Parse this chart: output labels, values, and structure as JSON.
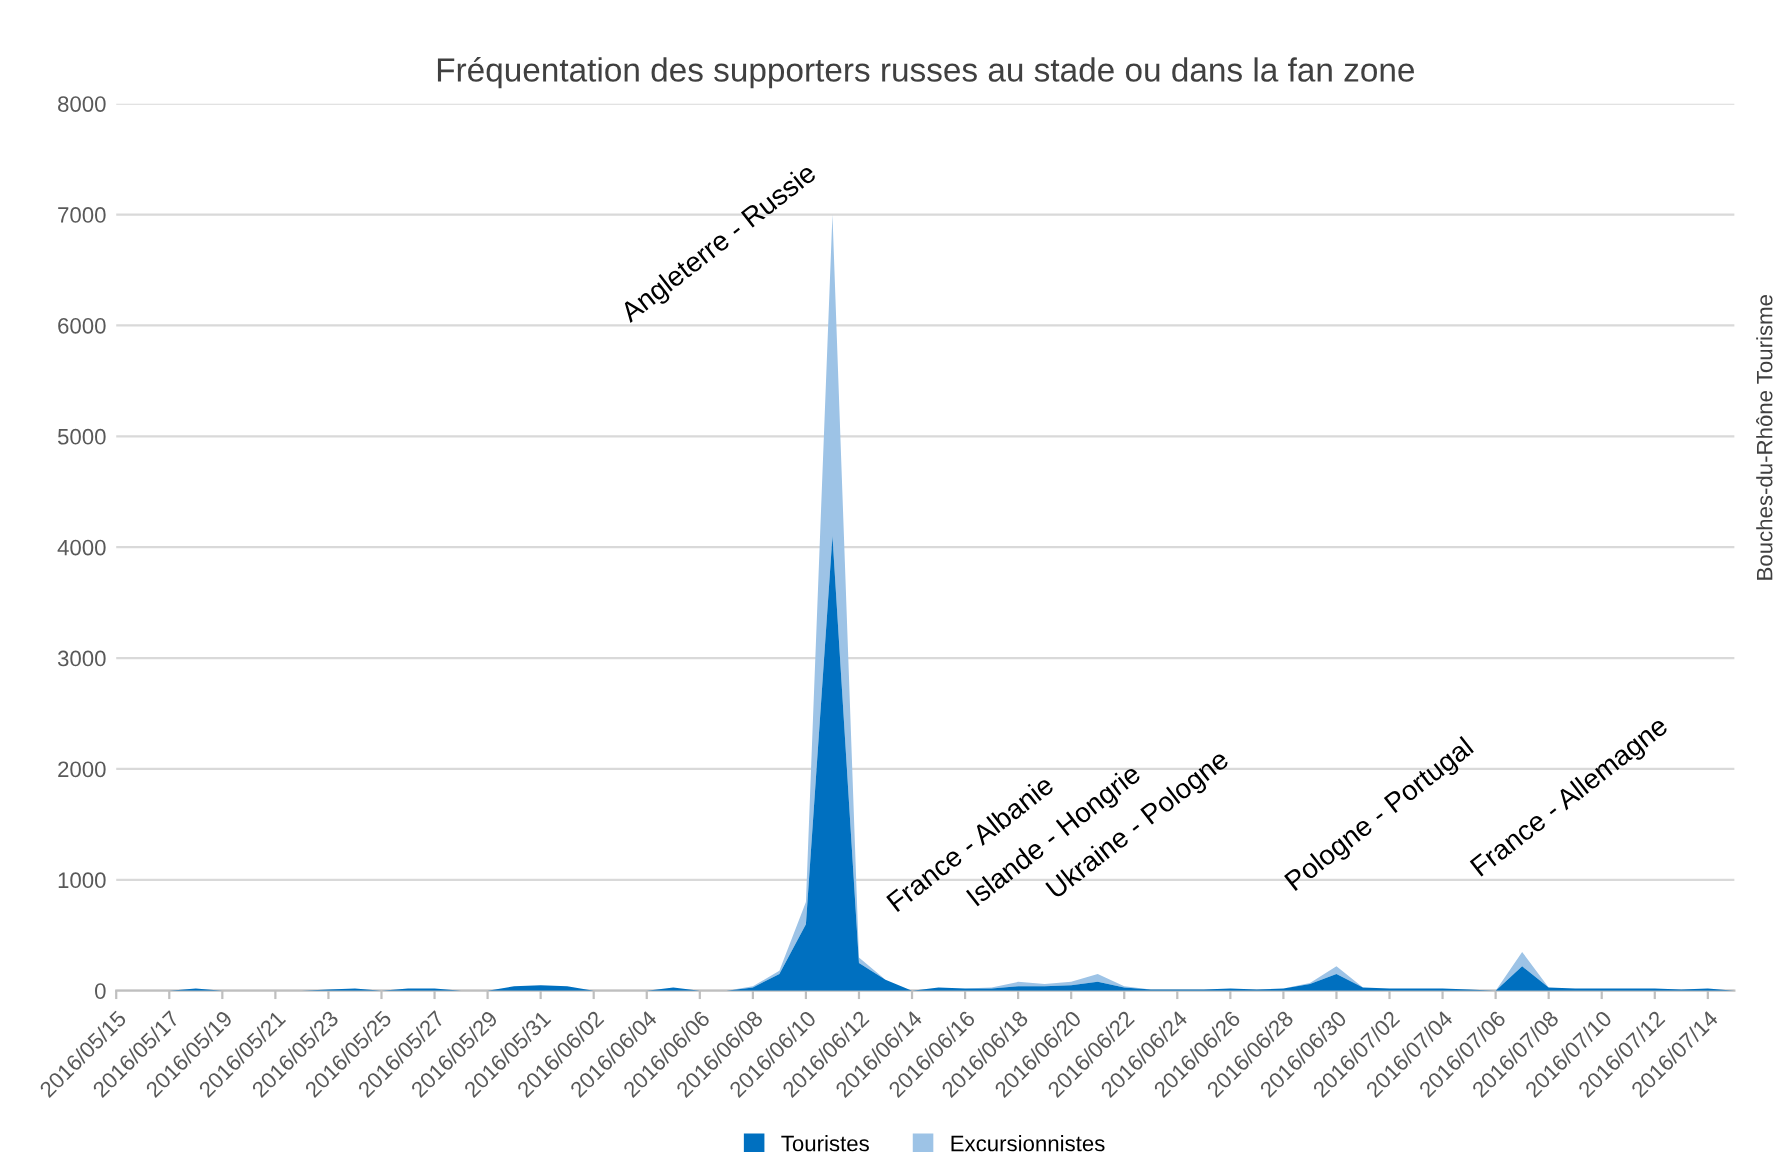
{
  "chart_data": {
    "type": "area",
    "stacked": true,
    "title": "Fréquentation des supporters russes au stade ou dans la fan zone",
    "x": [
      "2016-05-15",
      "2016-05-16",
      "2016-05-17",
      "2016-05-18",
      "2016-05-19",
      "2016-05-20",
      "2016-05-21",
      "2016-05-22",
      "2016-05-23",
      "2016-05-24",
      "2016-05-25",
      "2016-05-26",
      "2016-05-27",
      "2016-05-28",
      "2016-05-29",
      "2016-05-30",
      "2016-05-31",
      "2016-06-01",
      "2016-06-02",
      "2016-06-03",
      "2016-06-04",
      "2016-06-05",
      "2016-06-06",
      "2016-06-07",
      "2016-06-08",
      "2016-06-09",
      "2016-06-10",
      "2016-06-11",
      "2016-06-12",
      "2016-06-13",
      "2016-06-14",
      "2016-06-15",
      "2016-06-16",
      "2016-06-17",
      "2016-06-18",
      "2016-06-19",
      "2016-06-20",
      "2016-06-21",
      "2016-06-22",
      "2016-06-23",
      "2016-06-24",
      "2016-06-25",
      "2016-06-26",
      "2016-06-27",
      "2016-06-28",
      "2016-06-29",
      "2016-06-30",
      "2016-07-01",
      "2016-07-02",
      "2016-07-03",
      "2016-07-04",
      "2016-07-05",
      "2016-07-06",
      "2016-07-07",
      "2016-07-08",
      "2016-07-09",
      "2016-07-10",
      "2016-07-11",
      "2016-07-12",
      "2016-07-13",
      "2016-07-14",
      "2016-07-15"
    ],
    "series": [
      {
        "name": "Touristes",
        "color": "#0070c0",
        "values": [
          0,
          0,
          0,
          20,
          0,
          0,
          0,
          0,
          10,
          20,
          0,
          20,
          20,
          0,
          0,
          40,
          50,
          40,
          0,
          0,
          0,
          30,
          0,
          0,
          30,
          150,
          600,
          4100,
          250,
          100,
          0,
          30,
          20,
          20,
          40,
          40,
          50,
          80,
          30,
          10,
          10,
          10,
          20,
          10,
          20,
          60,
          150,
          30,
          20,
          20,
          20,
          10,
          0,
          220,
          30,
          20,
          20,
          20,
          20,
          10,
          20,
          0
        ]
      },
      {
        "name": "Excursionnistes",
        "color": "#9dc3e6",
        "values": [
          0,
          0,
          0,
          0,
          0,
          0,
          0,
          0,
          0,
          0,
          0,
          0,
          0,
          0,
          0,
          0,
          0,
          0,
          0,
          0,
          0,
          0,
          0,
          0,
          10,
          30,
          200,
          2900,
          50,
          0,
          0,
          0,
          0,
          10,
          40,
          20,
          30,
          70,
          10,
          0,
          0,
          0,
          0,
          0,
          0,
          10,
          70,
          0,
          0,
          0,
          0,
          0,
          0,
          130,
          0,
          0,
          0,
          0,
          0,
          0,
          0,
          0
        ]
      }
    ],
    "xlim": [
      "2016-05-15",
      "2016-07-15"
    ],
    "xticks": [
      {
        "value": "2016-05-15",
        "label": "2016/05/15"
      },
      {
        "value": "2016-05-17",
        "label": "2016/05/17"
      },
      {
        "value": "2016-05-19",
        "label": "2016/05/19"
      },
      {
        "value": "2016-05-21",
        "label": "2016/05/21"
      },
      {
        "value": "2016-05-23",
        "label": "2016/05/23"
      },
      {
        "value": "2016-05-25",
        "label": "2016/05/25"
      },
      {
        "value": "2016-05-27",
        "label": "2016/05/27"
      },
      {
        "value": "2016-05-29",
        "label": "2016/05/29"
      },
      {
        "value": "2016-05-31",
        "label": "2016/05/31"
      },
      {
        "value": "2016-06-02",
        "label": "2016/06/02"
      },
      {
        "value": "2016-06-04",
        "label": "2016/06/04"
      },
      {
        "value": "2016-06-06",
        "label": "2016/06/06"
      },
      {
        "value": "2016-06-08",
        "label": "2016/06/08"
      },
      {
        "value": "2016-06-10",
        "label": "2016/06/10"
      },
      {
        "value": "2016-06-12",
        "label": "2016/06/12"
      },
      {
        "value": "2016-06-14",
        "label": "2016/06/14"
      },
      {
        "value": "2016-06-16",
        "label": "2016/06/16"
      },
      {
        "value": "2016-06-18",
        "label": "2016/06/18"
      },
      {
        "value": "2016-06-20",
        "label": "2016/06/20"
      },
      {
        "value": "2016-06-22",
        "label": "2016/06/22"
      },
      {
        "value": "2016-06-24",
        "label": "2016/06/24"
      },
      {
        "value": "2016-06-26",
        "label": "2016/06/26"
      },
      {
        "value": "2016-06-28",
        "label": "2016/06/28"
      },
      {
        "value": "2016-06-30",
        "label": "2016/06/30"
      },
      {
        "value": "2016-07-02",
        "label": "2016/07/02"
      },
      {
        "value": "2016-07-04",
        "label": "2016/07/04"
      },
      {
        "value": "2016-07-06",
        "label": "2016/07/06"
      },
      {
        "value": "2016-07-08",
        "label": "2016/07/08"
      },
      {
        "value": "2016-07-10",
        "label": "2016/07/10"
      },
      {
        "value": "2016-07-12",
        "label": "2016/07/12"
      },
      {
        "value": "2016-07-14",
        "label": "2016/07/14"
      }
    ],
    "ylim": [
      0,
      8000
    ],
    "yticks": [
      0,
      1000,
      2000,
      3000,
      4000,
      5000,
      6000,
      7000,
      8000
    ],
    "grid": "y",
    "legend": "bottom",
    "annotations": [
      {
        "text": "Angleterre - Russie",
        "x": "2016-06-11",
        "y": 7000
      },
      {
        "text": "France - Albanie",
        "x": "2016-06-15",
        "y": 30
      },
      {
        "text": "Islande - Hongrie",
        "x": "2016-06-18",
        "y": 80
      },
      {
        "text": "Ukraine - Pologne",
        "x": "2016-06-21",
        "y": 150
      },
      {
        "text": "Pologne - Portugal",
        "x": "2016-06-30",
        "y": 220
      },
      {
        "text": "France - Allemagne",
        "x": "2016-07-07",
        "y": 350
      },
      "Bouches-du-Rhône Tourisme"
    ]
  }
}
